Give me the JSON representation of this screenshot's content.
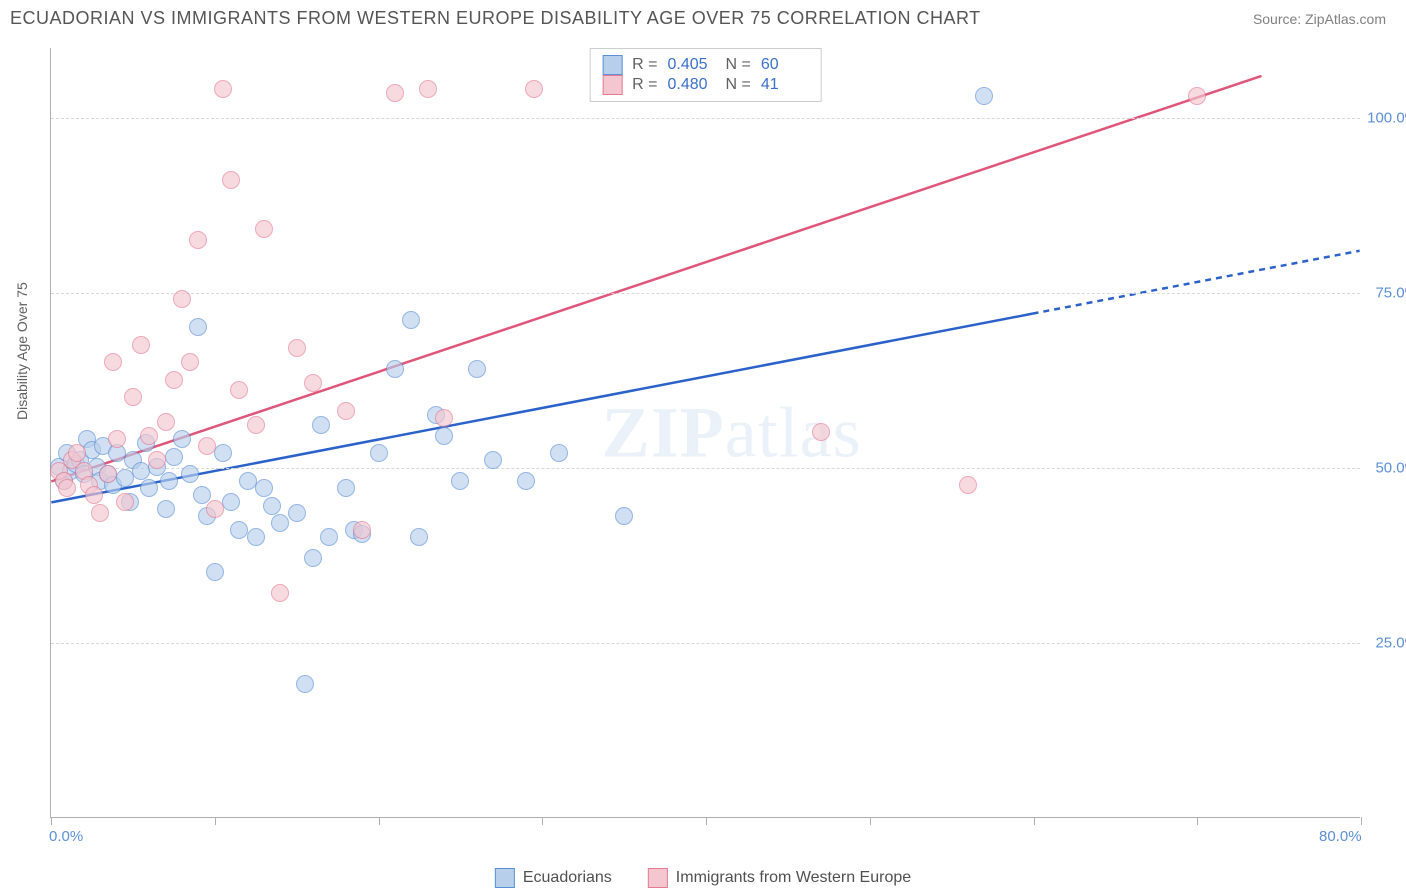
{
  "header": {
    "title": "ECUADORIAN VS IMMIGRANTS FROM WESTERN EUROPE DISABILITY AGE OVER 75 CORRELATION CHART",
    "source": "Source: ZipAtlas.com"
  },
  "watermark": {
    "text_a": "ZIP",
    "text_b": "atlas"
  },
  "chart": {
    "type": "scatter",
    "background_color": "#ffffff",
    "grid_color": "#d8d8d8",
    "axis_color": "#b0b0b0",
    "label_color": "#5b8fd6",
    "ylabel": "Disability Age Over 75",
    "xlim": [
      0,
      80
    ],
    "ylim": [
      0,
      110
    ],
    "xtick_major": [
      0,
      80
    ],
    "xtick_minor": [
      10,
      20,
      30,
      40,
      50,
      60,
      70
    ],
    "xtick_labels": {
      "0": "0.0%",
      "80": "80.0%"
    },
    "ytick_major": [
      25,
      50,
      75,
      100
    ],
    "ytick_labels": {
      "25": "25.0%",
      "50": "50.0%",
      "75": "75.0%",
      "100": "100.0%"
    },
    "marker_radius": 9,
    "marker_opacity": 0.65,
    "series": [
      {
        "name": "Ecuadorians",
        "fill_color": "#b7cfeb",
        "stroke_color": "#5b8fd6",
        "R": "0.405",
        "N": "60",
        "trend": {
          "x1": 0,
          "y1": 45,
          "x2_solid": 60,
          "y2_solid": 72,
          "x2_dash": 80,
          "y2_dash": 81,
          "line_color": "#2b62c9",
          "width": 2.5
        },
        "points": [
          [
            0.5,
            50
          ],
          [
            0.8,
            48
          ],
          [
            1,
            52
          ],
          [
            1.2,
            49.5
          ],
          [
            1.5,
            50.5
          ],
          [
            1.8,
            51
          ],
          [
            2,
            49
          ],
          [
            2.2,
            54
          ],
          [
            2.5,
            52.5
          ],
          [
            2.8,
            50
          ],
          [
            3,
            48
          ],
          [
            3.2,
            53
          ],
          [
            3.5,
            49
          ],
          [
            3.8,
            47.5
          ],
          [
            4,
            52
          ],
          [
            4.5,
            48.5
          ],
          [
            4.8,
            45
          ],
          [
            5,
            51
          ],
          [
            5.5,
            49.5
          ],
          [
            5.8,
            53.5
          ],
          [
            6,
            47
          ],
          [
            6.5,
            50
          ],
          [
            7,
            44
          ],
          [
            7.2,
            48
          ],
          [
            7.5,
            51.5
          ],
          [
            8,
            54
          ],
          [
            8.5,
            49
          ],
          [
            9,
            70
          ],
          [
            9.2,
            46
          ],
          [
            9.5,
            43
          ],
          [
            10,
            35
          ],
          [
            10.5,
            52
          ],
          [
            11,
            45
          ],
          [
            11.5,
            41
          ],
          [
            12,
            48
          ],
          [
            12.5,
            40
          ],
          [
            13,
            47
          ],
          [
            13.5,
            44.5
          ],
          [
            14,
            42
          ],
          [
            15,
            43.5
          ],
          [
            15.5,
            19
          ],
          [
            16,
            37
          ],
          [
            16.5,
            56
          ],
          [
            17,
            40
          ],
          [
            18,
            47
          ],
          [
            18.5,
            41
          ],
          [
            19,
            40.5
          ],
          [
            20,
            52
          ],
          [
            21,
            64
          ],
          [
            22,
            71
          ],
          [
            22.5,
            40
          ],
          [
            23.5,
            57.5
          ],
          [
            24,
            54.5
          ],
          [
            25,
            48
          ],
          [
            26,
            64
          ],
          [
            27,
            51
          ],
          [
            29,
            48
          ],
          [
            31,
            52
          ],
          [
            35,
            43
          ],
          [
            57,
            103
          ]
        ]
      },
      {
        "name": "Immigrants from Western Europe",
        "fill_color": "#f4c7d0",
        "stroke_color": "#e67a93",
        "R": "0.480",
        "N": "41",
        "trend": {
          "x1": 0,
          "y1": 48,
          "x2_solid": 74,
          "y2_solid": 106,
          "x2_dash": 74,
          "y2_dash": 106,
          "line_color": "#e0557a",
          "width": 2.5
        },
        "points": [
          [
            0.5,
            49.5
          ],
          [
            0.8,
            48
          ],
          [
            1,
            47
          ],
          [
            1.3,
            51
          ],
          [
            1.6,
            52
          ],
          [
            2,
            49.5
          ],
          [
            2.3,
            47.5
          ],
          [
            2.6,
            46
          ],
          [
            3,
            43.5
          ],
          [
            3.5,
            49
          ],
          [
            3.8,
            65
          ],
          [
            4,
            54
          ],
          [
            4.5,
            45
          ],
          [
            5,
            60
          ],
          [
            5.5,
            67.5
          ],
          [
            6,
            54.5
          ],
          [
            6.5,
            51
          ],
          [
            7,
            56.5
          ],
          [
            7.5,
            62.5
          ],
          [
            8,
            74
          ],
          [
            8.5,
            65
          ],
          [
            9,
            82.5
          ],
          [
            9.5,
            53
          ],
          [
            10,
            44
          ],
          [
            10.5,
            104
          ],
          [
            11,
            91
          ],
          [
            11.5,
            61
          ],
          [
            12.5,
            56
          ],
          [
            13,
            84
          ],
          [
            14,
            32
          ],
          [
            15,
            67
          ],
          [
            16,
            62
          ],
          [
            18,
            58
          ],
          [
            19,
            41
          ],
          [
            21,
            103.5
          ],
          [
            23,
            104
          ],
          [
            24,
            57
          ],
          [
            29.5,
            104
          ],
          [
            47,
            55
          ],
          [
            56,
            47.5
          ],
          [
            70,
            103
          ]
        ]
      }
    ],
    "legend_bottom": [
      {
        "label": "Ecuadorians",
        "fill": "#b7cfeb",
        "stroke": "#5b8fd6"
      },
      {
        "label": "Immigrants from Western Europe",
        "fill": "#f4c7d0",
        "stroke": "#e67a93"
      }
    ]
  }
}
